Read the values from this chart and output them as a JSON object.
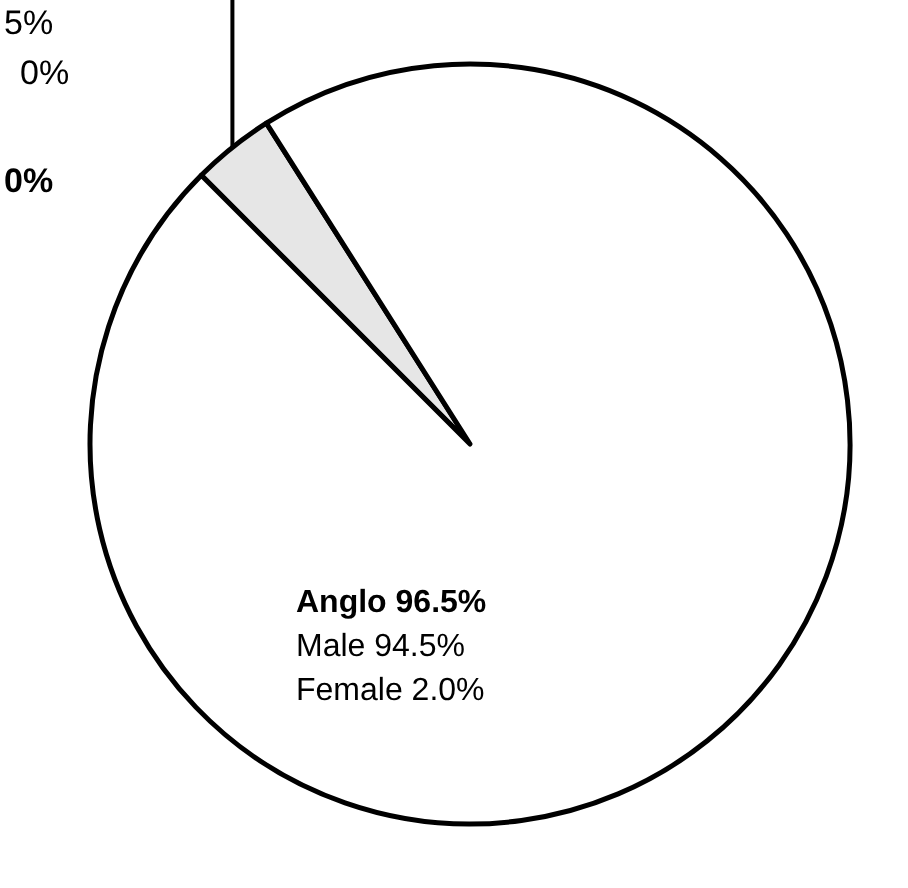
{
  "chart_data": {
    "type": "pie",
    "categories": [
      "Anglo",
      null
    ],
    "values": [
      96.5,
      3.5
    ],
    "colors": [
      "#ffffff",
      "#e6e6e6"
    ],
    "value_labels": [
      "96.5%",
      null
    ],
    "annotations": [
      "Male 94.5%",
      "Female 2.0%",
      "5%",
      "0%",
      "0%"
    ]
  }
}
